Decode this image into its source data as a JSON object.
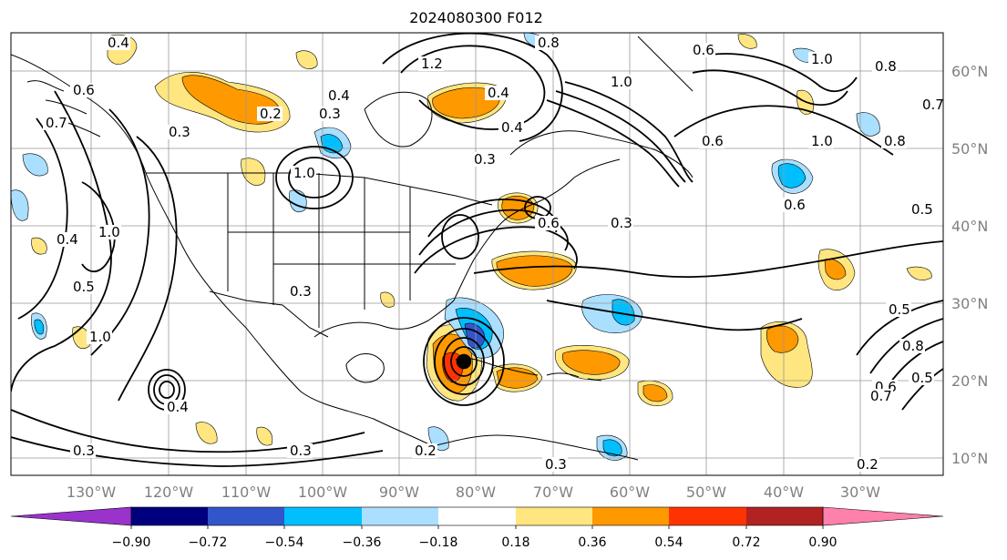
{
  "title": "2024080300 F012",
  "longitude_labels": [
    "130°W",
    "120°W",
    "110°W",
    "100°W",
    "90°W",
    "80°W",
    "70°W",
    "60°W",
    "50°W",
    "40°W",
    "30°W"
  ],
  "latitude_labels": [
    "60°N",
    "50°N",
    "40°N",
    "30°N",
    "20°N",
    "10°N"
  ],
  "colorbar": {
    "colors": [
      "#9a33cc",
      "#00007f",
      "#3355cc",
      "#00bfff",
      "#aadfff",
      "#ffffff",
      "#ffe680",
      "#ff9900",
      "#ff3300",
      "#b22222",
      "#ff80aa"
    ],
    "tick_labels": [
      "−0.90",
      "−0.72",
      "−0.54",
      "−0.36",
      "−0.18",
      "0.18",
      "0.36",
      "0.54",
      "0.72",
      "0.90"
    ]
  },
  "contour_labels": [
    {
      "text": "0.4"
    },
    {
      "text": "0.6"
    },
    {
      "text": "0.7"
    },
    {
      "text": "0.3"
    },
    {
      "text": "0.2"
    },
    {
      "text": "0.4"
    },
    {
      "text": "1.0"
    },
    {
      "text": "0.5"
    },
    {
      "text": "1.0"
    },
    {
      "text": "0.4"
    },
    {
      "text": "0.3"
    },
    {
      "text": "1.0"
    },
    {
      "text": "0.3"
    },
    {
      "text": "0.3"
    },
    {
      "text": "0.4"
    },
    {
      "text": "1.2"
    },
    {
      "text": "0.4"
    },
    {
      "text": "0.3"
    },
    {
      "text": "1.0"
    },
    {
      "text": "0.8"
    },
    {
      "text": "0.6"
    },
    {
      "text": "1.0"
    },
    {
      "text": "0.8"
    },
    {
      "text": "1.0"
    },
    {
      "text": "0.7"
    },
    {
      "text": "0.8"
    },
    {
      "text": "0.5"
    },
    {
      "text": "0.6"
    },
    {
      "text": "0.3"
    },
    {
      "text": "0.6"
    },
    {
      "text": "0.5"
    },
    {
      "text": "0.8"
    },
    {
      "text": "0.5"
    },
    {
      "text": "0.6"
    },
    {
      "text": "0.7"
    },
    {
      "text": "0.2"
    },
    {
      "text": "0.2"
    },
    {
      "text": "0.3"
    },
    {
      "text": "0.4"
    },
    {
      "text": "0.3"
    },
    {
      "text": "0.6"
    }
  ]
}
